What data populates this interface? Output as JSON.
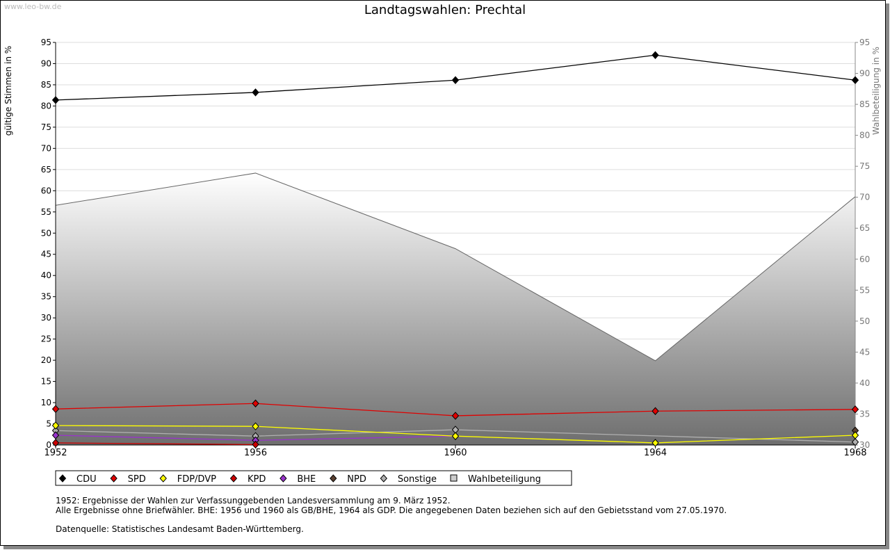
{
  "watermark": "www.leo-bw.de",
  "notes": [
    "1952: Ergebnisse der Wahlen zur Verfassunggebenden Landesversammlung am 9. März 1952.",
    "Alle Ergebnisse ohne Briefwähler. BHE: 1956 und 1960 als GB/BHE, 1964 als GDP. Die angegebenen Daten beziehen sich auf den Gebietsstand vom 27.05.1970.",
    "Datenquelle: Statistisches Landesamt Baden-Württemberg."
  ],
  "chart_data": {
    "type": "line",
    "title": "Landtagswahlen: Prechtal",
    "ylabel": "gültige Stimmen in %",
    "y2label": "Wahlbeteiligung in %",
    "x": [
      1952,
      1956,
      1960,
      1964,
      1968
    ],
    "ylim": [
      0,
      95
    ],
    "y2lim": [
      30,
      95
    ],
    "yticks": [
      0,
      5,
      10,
      15,
      20,
      25,
      30,
      35,
      40,
      45,
      50,
      55,
      60,
      65,
      70,
      75,
      80,
      85,
      90,
      95
    ],
    "y2ticks": [
      30,
      35,
      40,
      45,
      50,
      55,
      60,
      65,
      70,
      75,
      80,
      85,
      90,
      95
    ],
    "legend_position": "bottom",
    "series": [
      {
        "name": "CDU",
        "color": "#000000",
        "values": [
          81.4,
          83.2,
          86.1,
          92.0,
          86.1
        ]
      },
      {
        "name": "SPD",
        "color": "#e00000",
        "values": [
          8.5,
          9.8,
          6.9,
          8.0,
          8.4
        ]
      },
      {
        "name": "FDP/DVP",
        "color": "#ffff00",
        "values": [
          4.6,
          4.4,
          2.1,
          0.5,
          2.3
        ]
      },
      {
        "name": "KPD",
        "color": "#cc0000",
        "values": [
          0.5,
          0.1,
          null,
          null,
          null
        ]
      },
      {
        "name": "BHE",
        "color": "#9933cc",
        "values": [
          2.3,
          1.1,
          2.1,
          null,
          null
        ]
      },
      {
        "name": "NPD",
        "color": "#5a4030",
        "values": [
          null,
          null,
          null,
          null,
          3.4
        ]
      },
      {
        "name": "Sonstige",
        "color": "#b0b0b0",
        "values": [
          3.4,
          2.1,
          3.6,
          null,
          0.7
        ]
      },
      {
        "name": "Wahlbeteiligung",
        "color": "#a0a0a0",
        "axis": "right",
        "type": "area",
        "values": [
          68.7,
          73.9,
          61.7,
          43.6,
          70.1
        ]
      }
    ]
  }
}
